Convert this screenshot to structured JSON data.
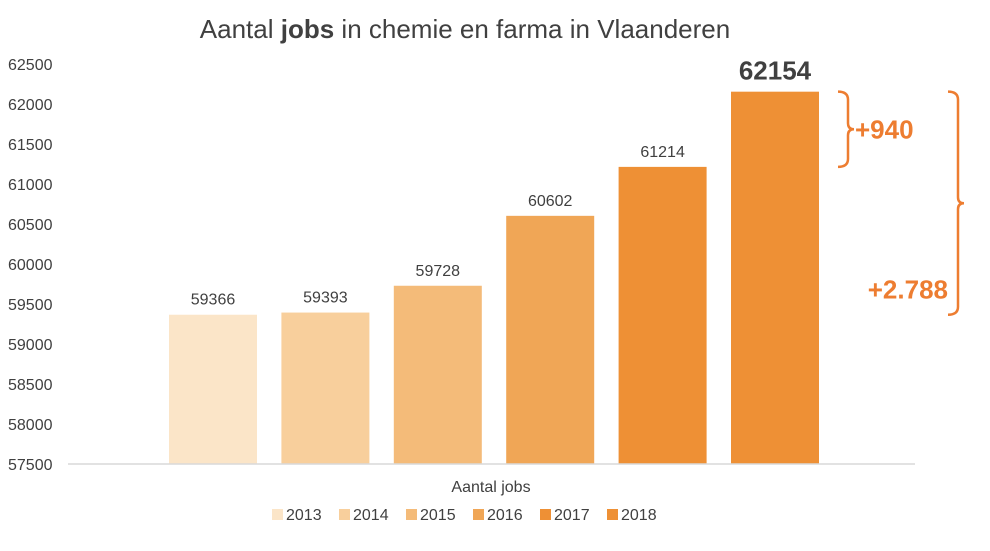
{
  "chart_data": {
    "type": "bar",
    "title": {
      "pre": "Aantal ",
      "bold": "jobs",
      "post": " in chemie en farma in Vlaanderen"
    },
    "category_label": "Aantal jobs",
    "ylim": [
      57500,
      62500
    ],
    "yticks": [
      57500,
      58000,
      58500,
      59000,
      59500,
      60000,
      60500,
      61000,
      61500,
      62000,
      62500
    ],
    "grid": false,
    "legend_position": "bottom",
    "series": [
      {
        "name": "2013",
        "value": 59366,
        "color": "#fbe5c8"
      },
      {
        "name": "2014",
        "value": 59393,
        "color": "#f8cf9c"
      },
      {
        "name": "2015",
        "value": 59728,
        "color": "#f4bb79"
      },
      {
        "name": "2016",
        "value": 60602,
        "color": "#f0a656"
      },
      {
        "name": "2017",
        "value": 61214,
        "color": "#ee9035"
      },
      {
        "name": "2018",
        "value": 62154,
        "color": "#ee9035"
      }
    ],
    "highlight_index": 5,
    "highlight_label_color": "#ed7d31",
    "annotations": [
      {
        "text": "+940",
        "from_series": 4,
        "to_series": 5,
        "color": "#ed7d31"
      },
      {
        "text": "+2.788",
        "from_series": 0,
        "to_series": 5,
        "color": "#ed7d31"
      }
    ]
  }
}
